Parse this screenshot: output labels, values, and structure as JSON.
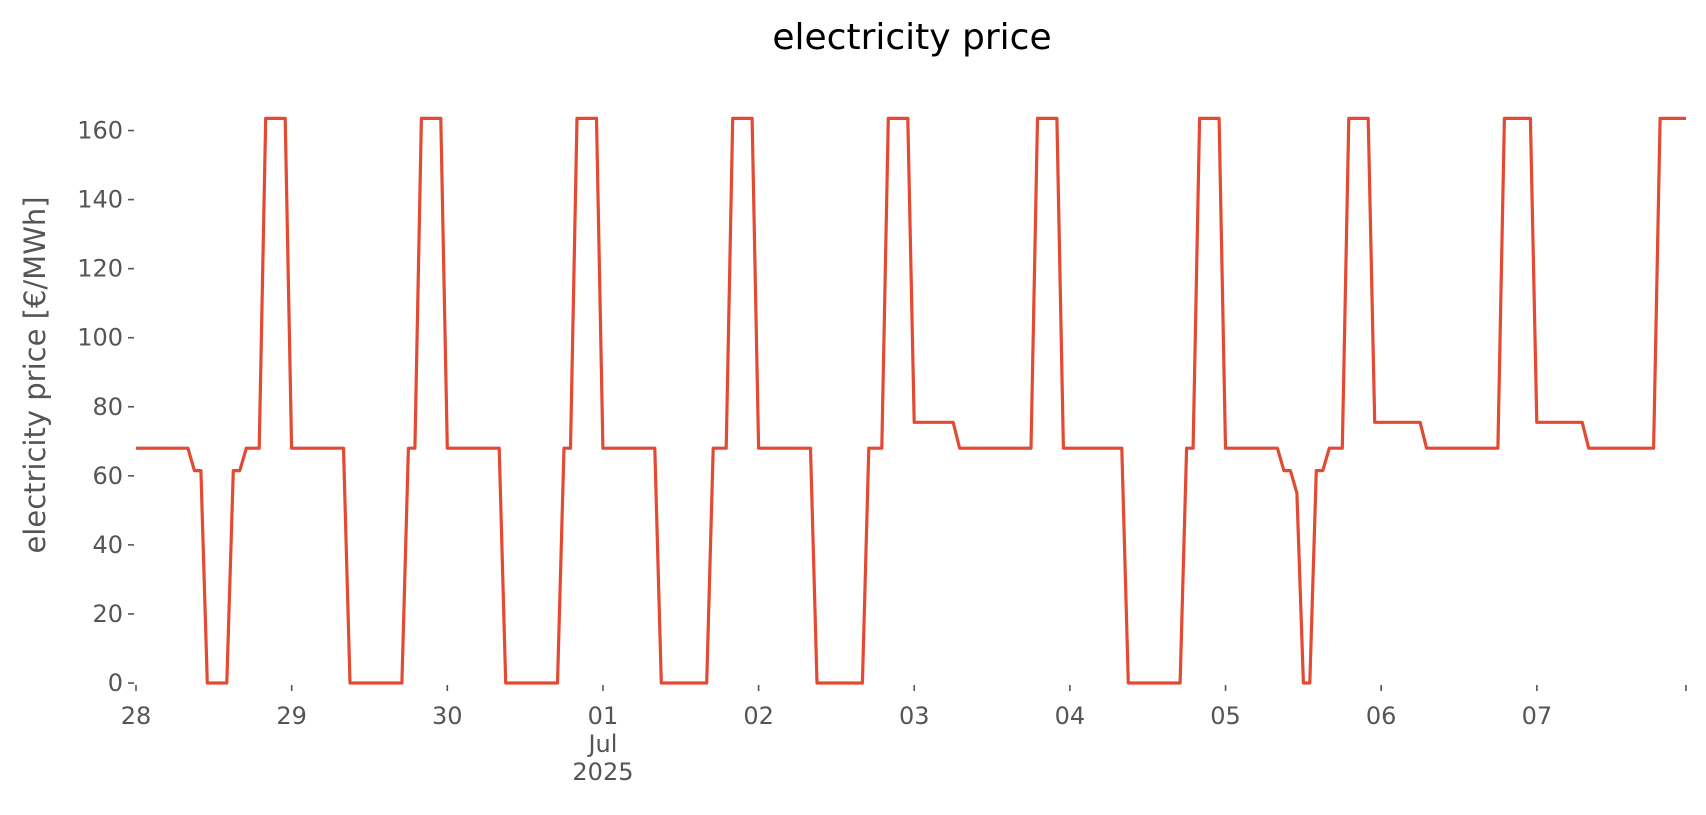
{
  "chart_data": {
    "type": "line",
    "title": "electricity price",
    "xlabel": "",
    "ylabel": "electricity price [€/MWh]",
    "xlim": [
      "2025-06-28 00:00",
      "2025-07-07 23:00"
    ],
    "ylim": [
      0,
      170
    ],
    "y_ticks": [
      0,
      20,
      40,
      60,
      80,
      100,
      120,
      140,
      160
    ],
    "x_ticks": [
      {
        "date": "2025-06-28",
        "lines": [
          "28"
        ]
      },
      {
        "date": "2025-06-29",
        "lines": [
          "29"
        ]
      },
      {
        "date": "2025-06-30",
        "lines": [
          "30"
        ]
      },
      {
        "date": "2025-07-01",
        "lines": [
          "01",
          "Jul",
          "2025"
        ]
      },
      {
        "date": "2025-07-02",
        "lines": [
          "02"
        ]
      },
      {
        "date": "2025-07-03",
        "lines": [
          "03"
        ]
      },
      {
        "date": "2025-07-04",
        "lines": [
          "04"
        ]
      },
      {
        "date": "2025-07-05",
        "lines": [
          "05"
        ]
      },
      {
        "date": "2025-07-06",
        "lines": [
          "06"
        ]
      },
      {
        "date": "2025-07-07",
        "lines": [
          "07"
        ]
      },
      {
        "date": "2025-07-08",
        "lines": [
          ""
        ]
      }
    ],
    "grid": false,
    "legend": "none",
    "series": [
      {
        "color": "#E24A33",
        "points": [
          [
            "2025-06-28 00:00",
            68
          ],
          [
            "2025-06-28 08:00",
            68
          ],
          [
            "2025-06-28 09:00",
            61.5
          ],
          [
            "2025-06-28 10:00",
            61.5
          ],
          [
            "2025-06-28 11:00",
            0
          ],
          [
            "2025-06-28 14:00",
            0
          ],
          [
            "2025-06-28 15:00",
            61.5
          ],
          [
            "2025-06-28 16:00",
            61.5
          ],
          [
            "2025-06-28 17:00",
            68
          ],
          [
            "2025-06-28 19:00",
            68
          ],
          [
            "2025-06-28 20:00",
            163.5
          ],
          [
            "2025-06-28 23:00",
            163.5
          ],
          [
            "2025-06-29 00:00",
            68
          ],
          [
            "2025-06-29 08:00",
            68
          ],
          [
            "2025-06-29 09:00",
            0
          ],
          [
            "2025-06-29 17:00",
            0
          ],
          [
            "2025-06-29 18:00",
            68
          ],
          [
            "2025-06-29 19:00",
            68
          ],
          [
            "2025-06-29 20:00",
            163.5
          ],
          [
            "2025-06-29 23:00",
            163.5
          ],
          [
            "2025-06-30 00:00",
            68
          ],
          [
            "2025-06-30 08:00",
            68
          ],
          [
            "2025-06-30 09:00",
            0
          ],
          [
            "2025-06-30 17:00",
            0
          ],
          [
            "2025-06-30 18:00",
            68
          ],
          [
            "2025-06-30 19:00",
            68
          ],
          [
            "2025-06-30 20:00",
            163.5
          ],
          [
            "2025-06-30 23:00",
            163.5
          ],
          [
            "2025-07-01 00:00",
            68
          ],
          [
            "2025-07-01 08:00",
            68
          ],
          [
            "2025-07-01 09:00",
            0
          ],
          [
            "2025-07-01 16:00",
            0
          ],
          [
            "2025-07-01 17:00",
            68
          ],
          [
            "2025-07-01 19:00",
            68
          ],
          [
            "2025-07-01 20:00",
            163.5
          ],
          [
            "2025-07-01 23:00",
            163.5
          ],
          [
            "2025-07-02 00:00",
            68
          ],
          [
            "2025-07-02 08:00",
            68
          ],
          [
            "2025-07-02 09:00",
            0
          ],
          [
            "2025-07-02 16:00",
            0
          ],
          [
            "2025-07-02 17:00",
            68
          ],
          [
            "2025-07-02 19:00",
            68
          ],
          [
            "2025-07-02 20:00",
            163.5
          ],
          [
            "2025-07-02 23:00",
            163.5
          ],
          [
            "2025-07-03 00:00",
            75.5
          ],
          [
            "2025-07-03 06:00",
            75.5
          ],
          [
            "2025-07-03 07:00",
            68
          ],
          [
            "2025-07-03 18:00",
            68
          ],
          [
            "2025-07-03 19:00",
            163.5
          ],
          [
            "2025-07-03 22:00",
            163.5
          ],
          [
            "2025-07-03 23:00",
            68
          ],
          [
            "2025-07-04 08:00",
            68
          ],
          [
            "2025-07-04 09:00",
            0
          ],
          [
            "2025-07-04 17:00",
            0
          ],
          [
            "2025-07-04 18:00",
            68
          ],
          [
            "2025-07-04 19:00",
            68
          ],
          [
            "2025-07-04 20:00",
            163.5
          ],
          [
            "2025-07-04 23:00",
            163.5
          ],
          [
            "2025-07-05 00:00",
            68
          ],
          [
            "2025-07-05 08:00",
            68
          ],
          [
            "2025-07-05 09:00",
            61.5
          ],
          [
            "2025-07-05 10:00",
            61.5
          ],
          [
            "2025-07-05 11:00",
            55
          ],
          [
            "2025-07-05 12:00",
            0
          ],
          [
            "2025-07-05 13:00",
            0
          ],
          [
            "2025-07-05 14:00",
            61.5
          ],
          [
            "2025-07-05 15:00",
            61.5
          ],
          [
            "2025-07-05 16:00",
            68
          ],
          [
            "2025-07-05 18:00",
            68
          ],
          [
            "2025-07-05 19:00",
            163.5
          ],
          [
            "2025-07-05 22:00",
            163.5
          ],
          [
            "2025-07-05 23:00",
            75.5
          ],
          [
            "2025-07-06 06:00",
            75.5
          ],
          [
            "2025-07-06 07:00",
            68
          ],
          [
            "2025-07-06 18:00",
            68
          ],
          [
            "2025-07-06 19:00",
            163.5
          ],
          [
            "2025-07-06 23:00",
            163.5
          ],
          [
            "2025-07-07 00:00",
            75.5
          ],
          [
            "2025-07-07 07:00",
            75.5
          ],
          [
            "2025-07-07 08:00",
            68
          ],
          [
            "2025-07-07 18:00",
            68
          ],
          [
            "2025-07-07 19:00",
            163.5
          ],
          [
            "2025-07-07 23:00",
            163.5
          ]
        ]
      }
    ]
  }
}
